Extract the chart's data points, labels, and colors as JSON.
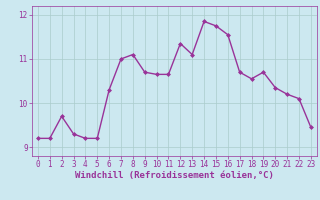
{
  "x": [
    0,
    1,
    2,
    3,
    4,
    5,
    6,
    7,
    8,
    9,
    10,
    11,
    12,
    13,
    14,
    15,
    16,
    17,
    18,
    19,
    20,
    21,
    22,
    23
  ],
  "y": [
    9.2,
    9.2,
    9.7,
    9.3,
    9.2,
    9.2,
    10.3,
    11.0,
    11.1,
    10.7,
    10.65,
    10.65,
    11.35,
    11.1,
    11.85,
    11.75,
    11.55,
    10.7,
    10.55,
    10.7,
    10.35,
    10.2,
    10.1,
    9.45
  ],
  "line_color": "#993399",
  "marker": "D",
  "marker_size": 2.0,
  "bg_color": "#cce8f0",
  "grid_color": "#aacccc",
  "xlabel": "Windchill (Refroidissement éolien,°C)",
  "xlabel_color": "#993399",
  "ylim": [
    8.8,
    12.2
  ],
  "xlim": [
    -0.5,
    23.5
  ],
  "yticks": [
    9,
    10,
    11,
    12
  ],
  "xticks": [
    0,
    1,
    2,
    3,
    4,
    5,
    6,
    7,
    8,
    9,
    10,
    11,
    12,
    13,
    14,
    15,
    16,
    17,
    18,
    19,
    20,
    21,
    22,
    23
  ],
  "tick_color": "#993399",
  "tick_fontsize": 5.5,
  "xlabel_fontsize": 6.5,
  "line_width": 1.0,
  "spine_color": "#993399"
}
